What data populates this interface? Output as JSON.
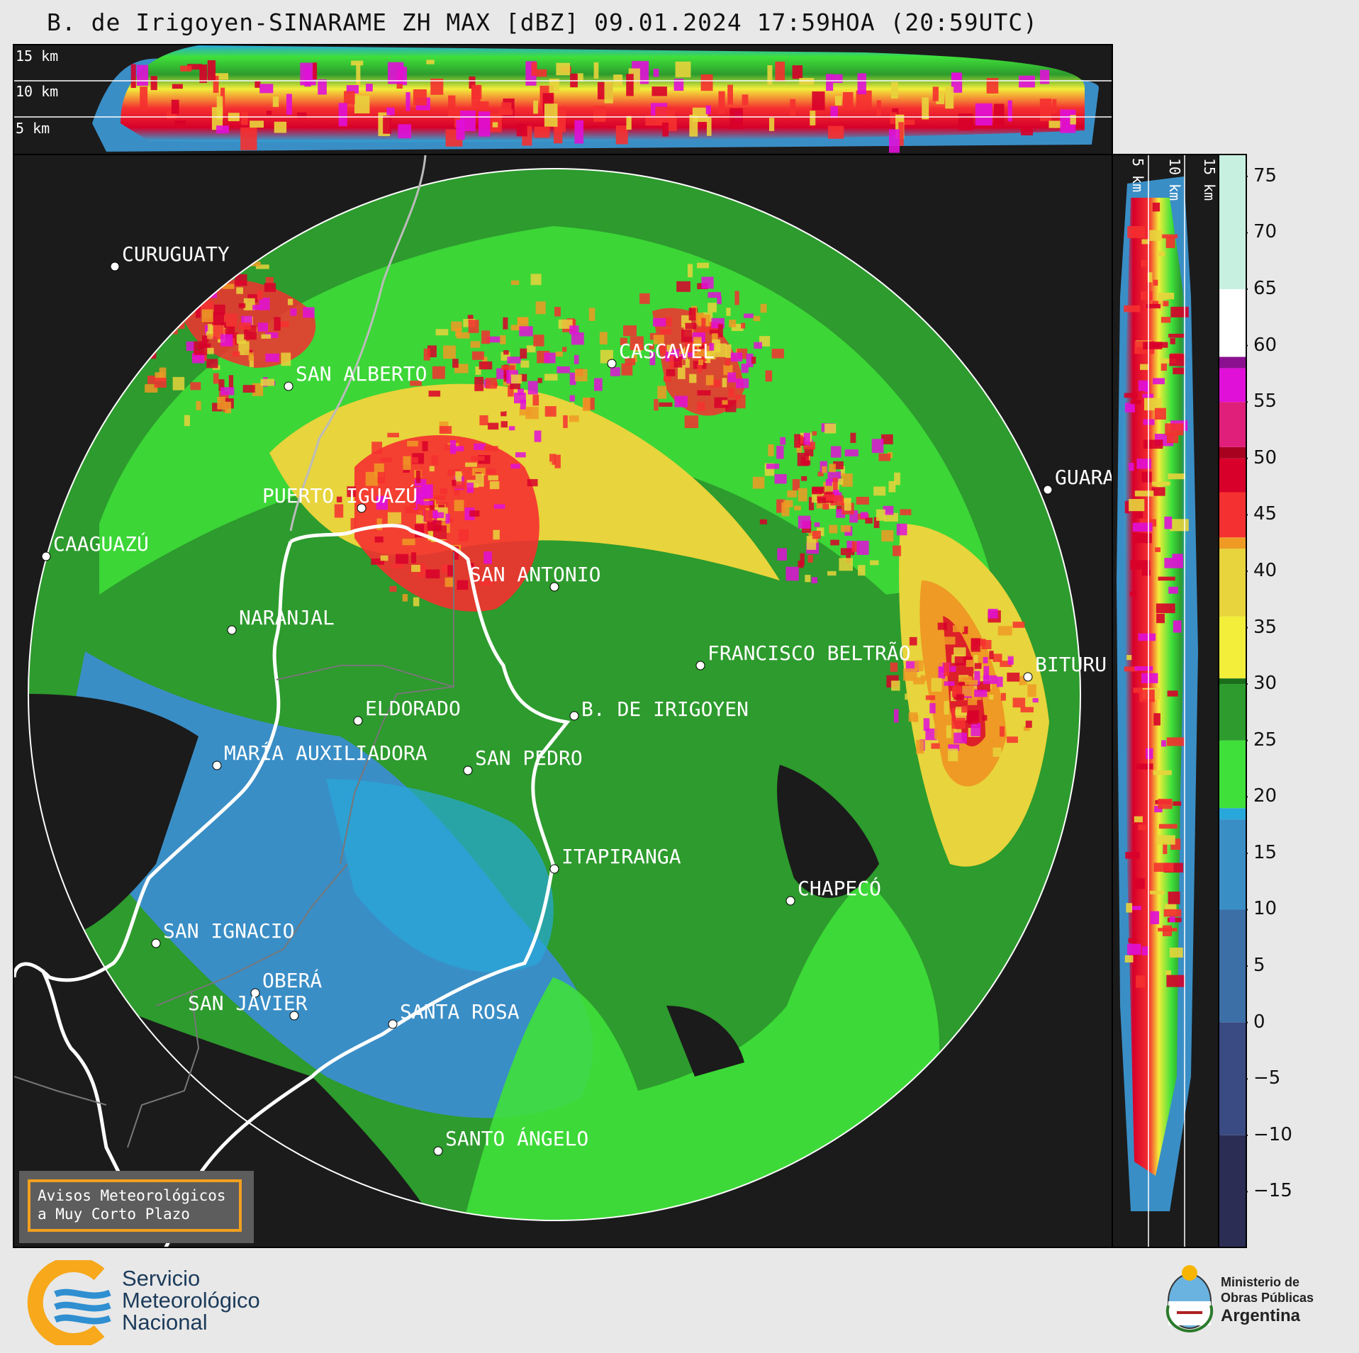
{
  "title": "B. de Irigoyen-SINARAME ZH MAX [dBZ] 09.01.2024 17:59HOA (20:59UTC)",
  "top_panel": {
    "height_labels": [
      "15 km",
      "10 km",
      "5 km"
    ]
  },
  "side_panel": {
    "height_labels": [
      "5 km",
      "10 km",
      "15 km"
    ]
  },
  "colorbar": {
    "unit": "dBZ",
    "ticks": [
      "75",
      "70",
      "65",
      "60",
      "55",
      "50",
      "45",
      "40",
      "35",
      "30",
      "25",
      "20",
      "15",
      "10",
      "5",
      "0",
      "−5",
      "−10",
      "−15"
    ],
    "stops": [
      {
        "v": -20,
        "color": "#2b2d55"
      },
      {
        "v": -10,
        "color": "#3a4a82"
      },
      {
        "v": 0,
        "color": "#3c6fa6"
      },
      {
        "v": 10,
        "color": "#3a8ec6"
      },
      {
        "v": 18,
        "color": "#28a8da"
      },
      {
        "v": 19,
        "color": "#3fe03a"
      },
      {
        "v": 25,
        "color": "#2d9b2d"
      },
      {
        "v": 30,
        "color": "#1a6e1a"
      },
      {
        "v": 30.5,
        "color": "#f2ee3a"
      },
      {
        "v": 36,
        "color": "#e8d43c"
      },
      {
        "v": 42,
        "color": "#ee9a25"
      },
      {
        "v": 43,
        "color": "#f53030"
      },
      {
        "v": 47,
        "color": "#d8002a"
      },
      {
        "v": 50,
        "color": "#a8001f"
      },
      {
        "v": 51,
        "color": "#e01f7a"
      },
      {
        "v": 55,
        "color": "#e010d8"
      },
      {
        "v": 58,
        "color": "#8a1090"
      },
      {
        "v": 59,
        "color": "#ffffff"
      },
      {
        "v": 65,
        "color": "#c8f0e0"
      },
      {
        "v": 77,
        "color": "#80d8b8"
      }
    ]
  },
  "cities": [
    {
      "name": "CURUGUATY"
    },
    {
      "name": "SAN ALBERTO"
    },
    {
      "name": "CASCAVEL"
    },
    {
      "name": "CAAGUAZÚ"
    },
    {
      "name": "GUARA"
    },
    {
      "name": "PUERTO IGUAZÚ"
    },
    {
      "name": "NARANJAL"
    },
    {
      "name": "SAN ANTONIO"
    },
    {
      "name": "FRANCISCO BELTRÃO"
    },
    {
      "name": "BITURU"
    },
    {
      "name": "B. DE IRIGOYEN"
    },
    {
      "name": "ELDORADO"
    },
    {
      "name": "MARÍA AUXILIADORA"
    },
    {
      "name": "SAN PEDRO"
    },
    {
      "name": "ITAPIRANGA"
    },
    {
      "name": "CHAPECÓ"
    },
    {
      "name": "SAN IGNACIO"
    },
    {
      "name": "OBERÁ"
    },
    {
      "name": "SAN JAVIER"
    },
    {
      "name": "SANTA ROSA"
    },
    {
      "name": "SANTO ÁNGELO"
    }
  ],
  "alerts_box": {
    "line1": "Avisos Meteorológicos",
    "line2": "a Muy Corto Plazo"
  },
  "footer": {
    "smn": {
      "line1": "Servicio",
      "line2": "Meteorológico",
      "line3": "Nacional"
    },
    "ministry": {
      "line1": "Ministerio de",
      "line2": "Obras Públicas",
      "line3": "Argentina"
    }
  }
}
